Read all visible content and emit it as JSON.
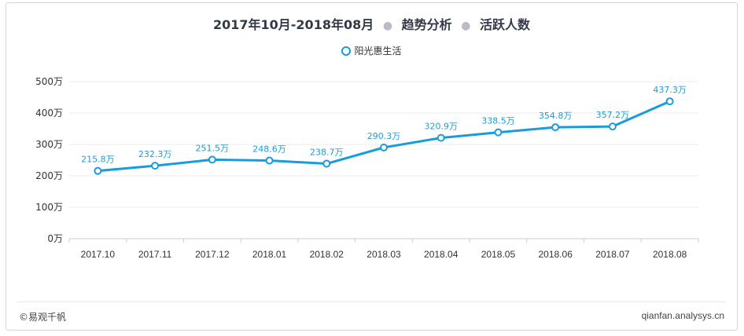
{
  "header": {
    "date_range": "2017年10月-2018年08月",
    "part2": "趋势分析",
    "part3": "活跃人数"
  },
  "legend": {
    "series_name": "阳光惠生活"
  },
  "footer": {
    "copyright": "©易观千帆",
    "site": "qianfan.analysys.cn"
  },
  "colors": {
    "series": "#1a9cdc",
    "grid": "#ececec",
    "axis": "#cccccc",
    "label": "#1a9cdc"
  },
  "chart_data": {
    "type": "line",
    "title": "2017年10月-2018年08月 · 趋势分析 · 活跃人数",
    "categories": [
      "2017.10",
      "2017.11",
      "2017.12",
      "2018.01",
      "2018.02",
      "2018.03",
      "2018.04",
      "2018.05",
      "2018.06",
      "2018.07",
      "2018.08"
    ],
    "series": [
      {
        "name": "阳光惠生活",
        "values": [
          215.8,
          232.3,
          251.5,
          248.6,
          238.7,
          290.3,
          320.9,
          338.5,
          354.8,
          357.2,
          437.3
        ],
        "labels": [
          "215.8万",
          "232.3万",
          "251.5万",
          "248.6万",
          "238.7万",
          "290.3万",
          "320.9万",
          "338.5万",
          "354.8万",
          "357.2万",
          "437.3万"
        ]
      }
    ],
    "y_ticks": [
      "0万",
      "100万",
      "200万",
      "300万",
      "400万",
      "500万"
    ],
    "ylim": [
      0,
      500
    ],
    "grid": true,
    "legend_position": "top-center"
  }
}
